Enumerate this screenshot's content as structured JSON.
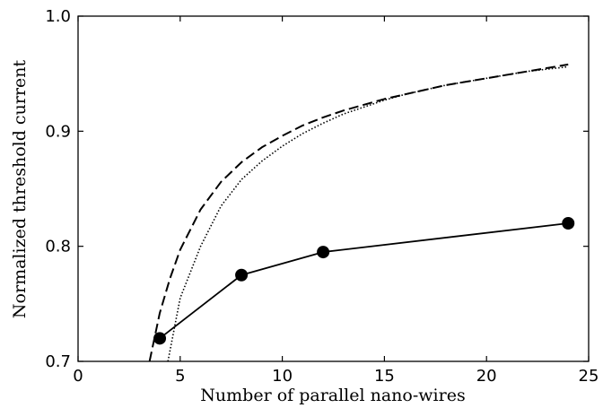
{
  "chart_data": {
    "type": "line",
    "title": "",
    "xlabel": "Number of parallel nano-wires",
    "ylabel": "Normalized threshold current",
    "xlim": [
      0,
      25
    ],
    "ylim": [
      0.7,
      1.0
    ],
    "x_ticks": [
      0,
      5,
      10,
      15,
      20,
      25
    ],
    "y_ticks": [
      0.7,
      0.8,
      0.9,
      1.0
    ],
    "x_tick_labels": [
      "0",
      "5",
      "10",
      "15",
      "20",
      "25"
    ],
    "y_tick_labels": [
      "0.7",
      "0.8",
      "0.9",
      "1.0"
    ],
    "grid": false,
    "legend": "none",
    "series": [
      {
        "style": "solid-with-markers",
        "color": "#000000",
        "x": [
          4,
          8,
          12,
          24
        ],
        "y": [
          0.72,
          0.775,
          0.795,
          0.82
        ]
      },
      {
        "style": "dashed",
        "color": "#000000",
        "x": [
          3.5,
          4,
          4.5,
          5,
          6,
          7,
          8,
          9,
          10,
          11,
          12,
          13,
          14,
          15,
          16,
          17,
          18,
          19,
          20,
          21,
          22,
          23,
          24
        ],
        "y": [
          0.7,
          0.742,
          0.772,
          0.797,
          0.832,
          0.856,
          0.873,
          0.886,
          0.896,
          0.905,
          0.912,
          0.918,
          0.923,
          0.928,
          0.932,
          0.936,
          0.94,
          0.943,
          0.946,
          0.949,
          0.952,
          0.955,
          0.958
        ]
      },
      {
        "style": "dotted",
        "color": "#000000",
        "x": [
          4.4,
          5,
          6,
          7,
          8,
          9,
          10,
          11,
          12,
          13,
          14,
          15,
          16,
          17,
          18,
          19,
          20,
          21,
          22,
          23,
          24
        ],
        "y": [
          0.7,
          0.755,
          0.8,
          0.835,
          0.858,
          0.874,
          0.887,
          0.898,
          0.907,
          0.915,
          0.921,
          0.927,
          0.932,
          0.936,
          0.94,
          0.943,
          0.946,
          0.949,
          0.952,
          0.954,
          0.956
        ]
      }
    ]
  }
}
